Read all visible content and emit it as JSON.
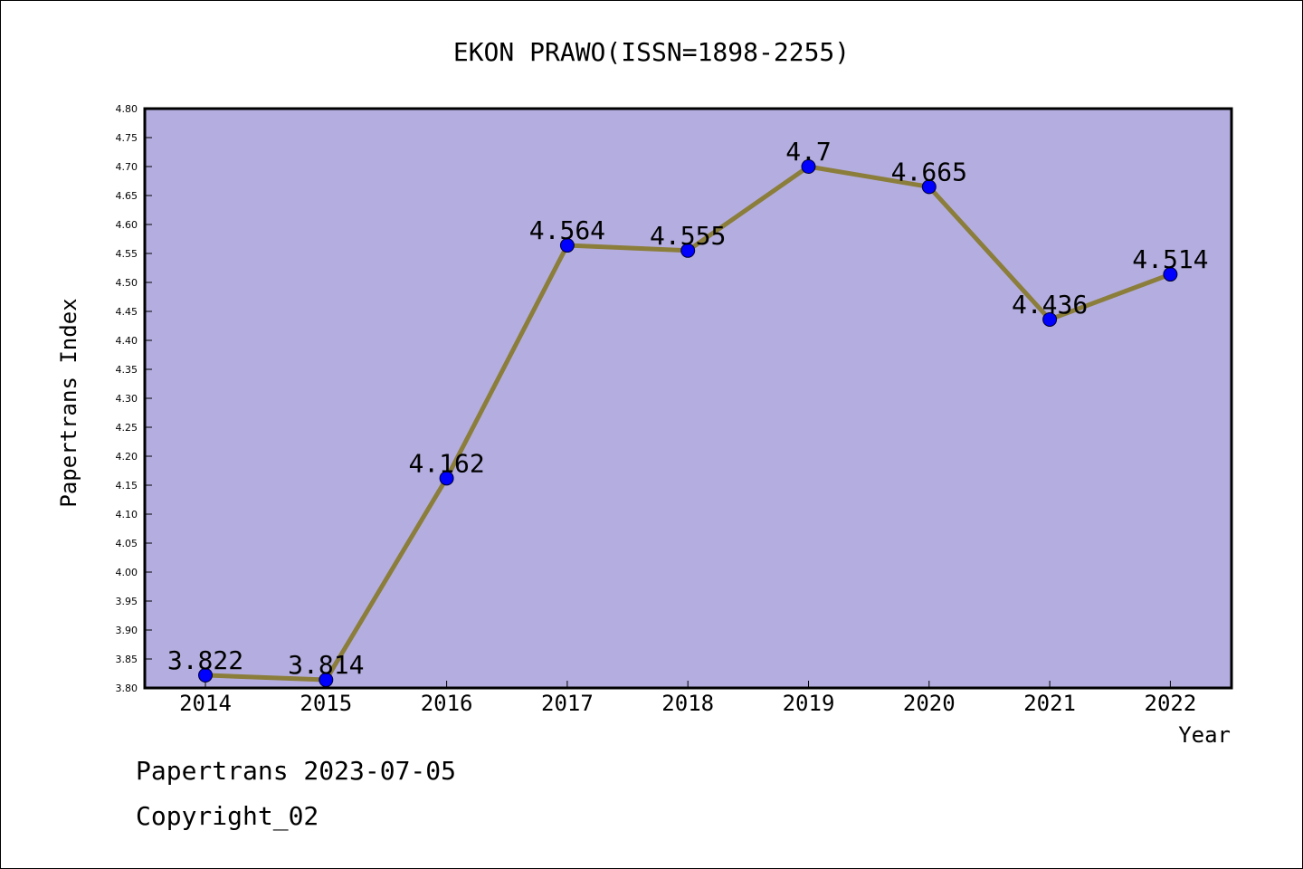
{
  "chart_data": {
    "type": "line",
    "title": "EKON PRAWO(ISSN=1898-2255)",
    "xlabel": "Year",
    "ylabel": "Papertrans Index",
    "categories": [
      "2014",
      "2015",
      "2016",
      "2017",
      "2018",
      "2019",
      "2020",
      "2021",
      "2022"
    ],
    "series": [
      {
        "values": [
          3.822,
          3.814,
          4.162,
          4.564,
          4.555,
          4.7,
          4.665,
          4.436,
          4.514
        ],
        "labels": [
          "3.822",
          "3.814",
          "4.162",
          "4.564",
          "4.555",
          "4.7",
          "4.665",
          "4.436",
          "4.514"
        ]
      }
    ],
    "ylim": [
      3.8,
      4.8
    ],
    "yticks": [
      "3.80",
      "3.85",
      "3.90",
      "3.95",
      "4.00",
      "4.05",
      "4.10",
      "4.15",
      "4.20",
      "4.25",
      "4.30",
      "4.35",
      "4.40",
      "4.45",
      "4.50",
      "4.55",
      "4.60",
      "4.65",
      "4.70",
      "4.75",
      "4.80"
    ],
    "grid": false,
    "legend": "none"
  },
  "footer": {
    "source": "Papertrans 2023-07-05",
    "copyright": "Copyright_02"
  },
  "colors": {
    "plot_background": "#b4aee0",
    "line": "#8b7d3a",
    "marker": "#0000ff"
  }
}
